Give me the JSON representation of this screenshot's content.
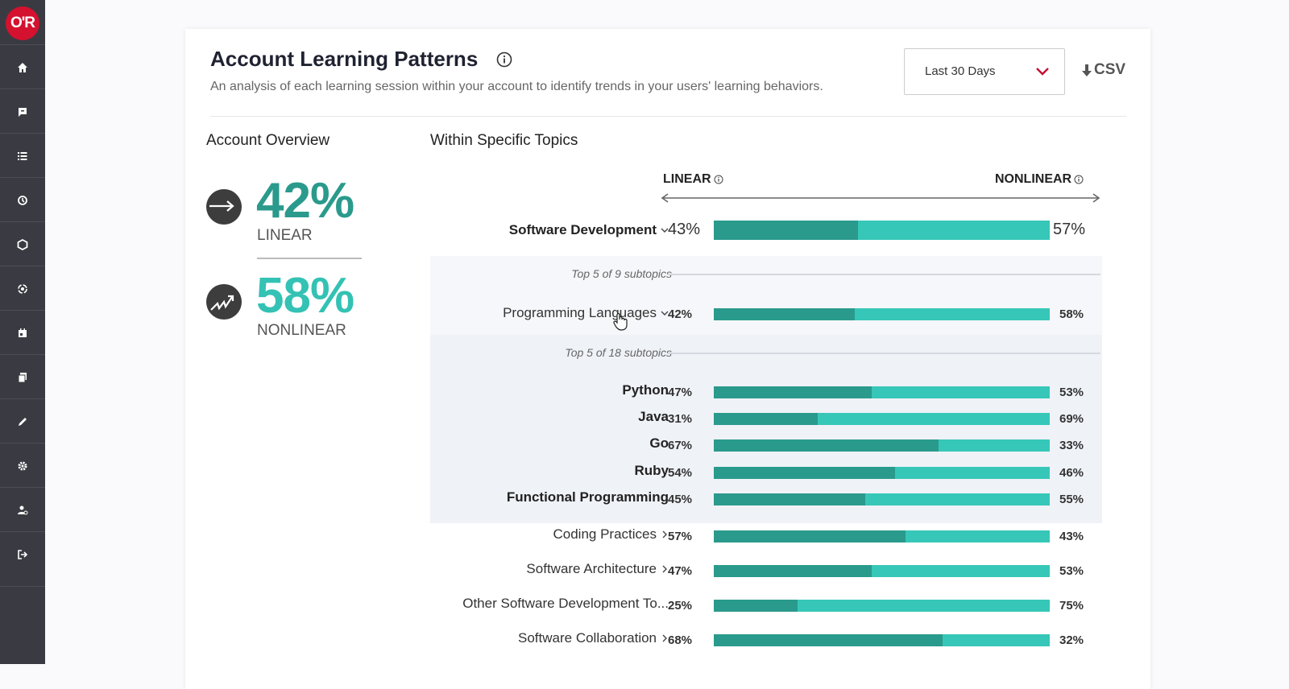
{
  "app": {
    "logo_text": "O'R"
  },
  "sidebar": {
    "items": [
      {
        "icon": "home-icon"
      },
      {
        "icon": "chat-icon"
      },
      {
        "icon": "list-icon"
      },
      {
        "icon": "history-icon"
      },
      {
        "icon": "hexagon-icon"
      },
      {
        "icon": "target-icon"
      },
      {
        "icon": "calendar-icon"
      },
      {
        "icon": "documents-icon"
      },
      {
        "icon": "pencil-icon"
      },
      {
        "icon": "gear-icon"
      },
      {
        "icon": "user-settings-icon"
      },
      {
        "icon": "logout-icon"
      }
    ]
  },
  "header": {
    "title": "Account Learning Patterns",
    "subtitle": "An analysis of each learning session within your account to identify trends in your users' learning behaviors.",
    "date_range": "Last 30 Days",
    "csv_label": "CSV"
  },
  "overview": {
    "heading": "Account Overview",
    "linear_pct": "42%",
    "linear_label": "LINEAR",
    "nonlinear_pct": "58%",
    "nonlinear_label": "NONLINEAR"
  },
  "topics": {
    "heading": "Within Specific Topics",
    "axis_left": "LINEAR",
    "axis_right": "NONLINEAR",
    "main": {
      "label": "Software Development",
      "linear": 43,
      "left": "43%",
      "right": "57%"
    },
    "sub_note_1": "Top 5 of 9 subtopics",
    "sub_main": {
      "label": "Programming Languages",
      "linear": 42,
      "left": "42%",
      "right": "58%"
    },
    "sub_note_2": "Top 5 of 18 subtopics",
    "languages": [
      {
        "label": "Python",
        "linear": 47,
        "left": "47%",
        "right": "53%"
      },
      {
        "label": "Java",
        "linear": 31,
        "left": "31%",
        "right": "69%"
      },
      {
        "label": "Go",
        "linear": 67,
        "left": "67%",
        "right": "33%"
      },
      {
        "label": "Ruby",
        "linear": 54,
        "left": "54%",
        "right": "46%"
      },
      {
        "label": "Functional Programming",
        "linear": 45,
        "left": "45%",
        "right": "55%"
      }
    ],
    "others": [
      {
        "label": "Coding Practices",
        "linear": 57,
        "left": "57%",
        "right": "43%"
      },
      {
        "label": "Software Architecture",
        "linear": 47,
        "left": "47%",
        "right": "53%"
      },
      {
        "label": "Other Software Development To...",
        "linear": 25,
        "left": "25%",
        "right": "75%"
      },
      {
        "label": "Software Collaboration",
        "linear": 68,
        "left": "68%",
        "right": "32%"
      }
    ]
  },
  "colors": {
    "linear": "#2a9a8c",
    "nonlinear": "#36c7b8",
    "brand": "#d4112f"
  }
}
